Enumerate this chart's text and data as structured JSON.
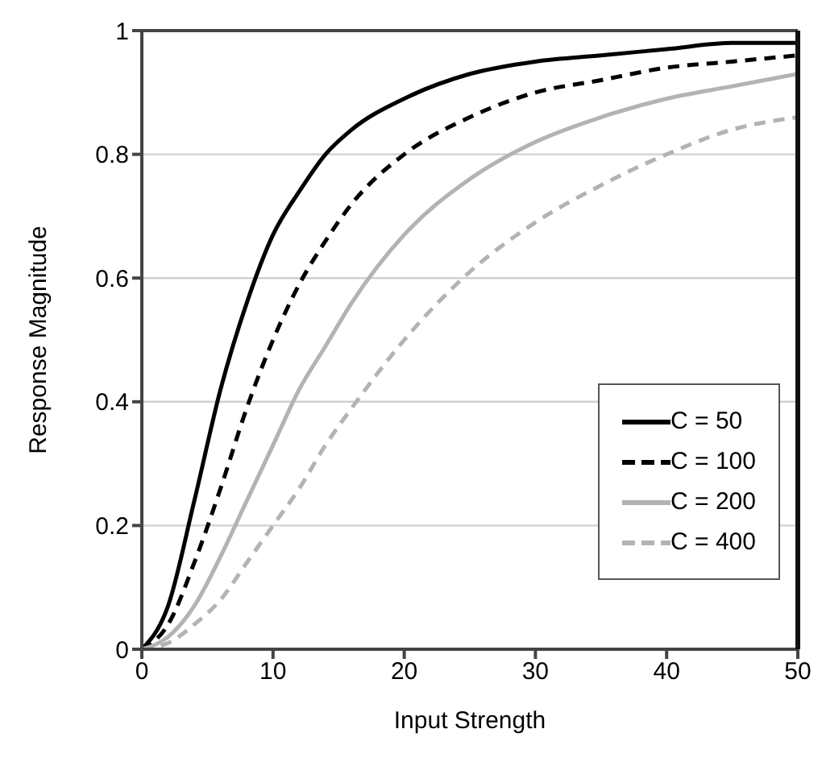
{
  "chart_data": {
    "type": "line",
    "xlabel": "Input Strength",
    "ylabel": "Response Magnitude",
    "x": [
      0,
      2,
      4,
      6,
      8,
      10,
      12,
      14,
      16,
      20,
      25,
      30,
      35,
      40,
      45,
      50
    ],
    "series": [
      {
        "name": "C = 50",
        "color": "#000000",
        "line_style": "solid",
        "values": [
          0,
          0.07,
          0.24,
          0.42,
          0.56,
          0.67,
          0.74,
          0.8,
          0.84,
          0.89,
          0.93,
          0.95,
          0.96,
          0.97,
          0.98,
          0.98
        ]
      },
      {
        "name": "C = 100",
        "color": "#000000",
        "line_style": "dashed",
        "values": [
          0,
          0.04,
          0.14,
          0.26,
          0.39,
          0.5,
          0.59,
          0.66,
          0.72,
          0.8,
          0.86,
          0.9,
          0.92,
          0.94,
          0.95,
          0.96
        ]
      },
      {
        "name": "C = 200",
        "color": "#b3b3b3",
        "line_style": "solid",
        "values": [
          0,
          0.02,
          0.07,
          0.15,
          0.24,
          0.33,
          0.42,
          0.49,
          0.56,
          0.67,
          0.76,
          0.82,
          0.86,
          0.89,
          0.91,
          0.93
        ]
      },
      {
        "name": "C = 400",
        "color": "#b3b3b3",
        "line_style": "dashed",
        "values": [
          0,
          0.01,
          0.04,
          0.08,
          0.14,
          0.2,
          0.26,
          0.33,
          0.39,
          0.5,
          0.61,
          0.69,
          0.75,
          0.8,
          0.84,
          0.86
        ]
      }
    ],
    "xlim": [
      0,
      50
    ],
    "xticks": [
      0,
      10,
      20,
      30,
      40,
      50
    ],
    "ylim": [
      0,
      1
    ],
    "yticks": [
      0,
      0.2,
      0.4,
      0.6,
      0.8,
      1
    ],
    "grid": "y",
    "legend": "bottom right",
    "marker": "none"
  }
}
